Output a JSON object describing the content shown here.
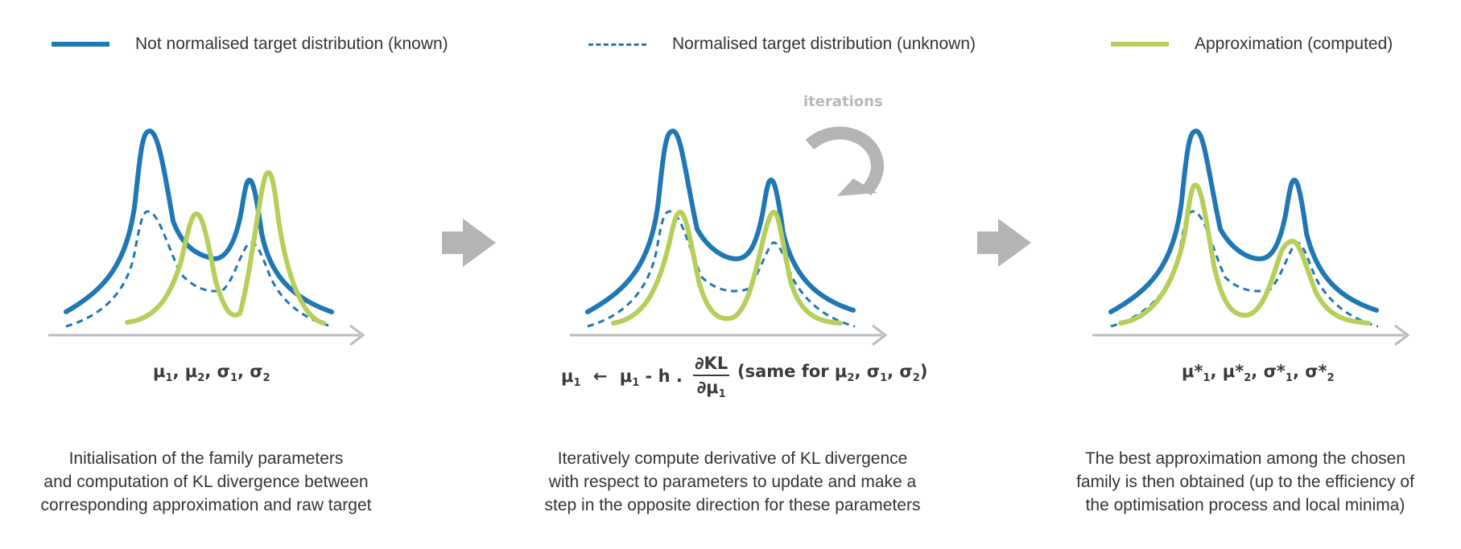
{
  "colors": {
    "target": "#1f77b4",
    "approximation": "#b5cf5a",
    "axis": "#bbbbbb",
    "arrow": "#b4b4b6",
    "text": "#333333"
  },
  "legend": [
    {
      "style": "solid-blue",
      "label": "Not normalised target distribution (known)"
    },
    {
      "style": "dashed-blue",
      "label": "Normalised target distribution (unknown)"
    },
    {
      "style": "solid-green",
      "label": "Approximation (computed)"
    }
  ],
  "iterations_label": "iterations",
  "panels": [
    {
      "id": "init",
      "params": {
        "mu": "μ",
        "sigma": "σ",
        "sub1": "1",
        "sub2": "2",
        "sep": ",",
        "star": ""
      },
      "caption": [
        "Initialisation of the family parameters",
        "and computation of KL divergence between",
        "corresponding approximation and raw target"
      ]
    },
    {
      "id": "iterate",
      "update": {
        "lhs": "μ",
        "lhs_sub": "1",
        "arrow": "←",
        "rhs": "μ",
        "rhs_sub": "1",
        "minus_h": "- h .",
        "num": "∂KL",
        "den": "∂μ",
        "den_sub": "1",
        "same_prefix": "(same for μ",
        "same_sub2": "2",
        "same_sigma": ", σ",
        "same_sub1": "1",
        "same_sigma2": ", σ",
        "same_sub2b": "2",
        "same_close": ")"
      },
      "caption": [
        "Iteratively compute derivative of KL divergence",
        "with respect to parameters to update and make a",
        "step in the opposite direction for these parameters"
      ]
    },
    {
      "id": "result",
      "params": {
        "mu": "μ*",
        "sigma": "σ*",
        "sub1": "1",
        "sub2": "2",
        "sep": ",",
        "star": "*"
      },
      "caption": [
        "The best approximation among the chosen",
        "family is then obtained (up to the efficiency of",
        "the optimisation process and local minima)"
      ]
    }
  ]
}
